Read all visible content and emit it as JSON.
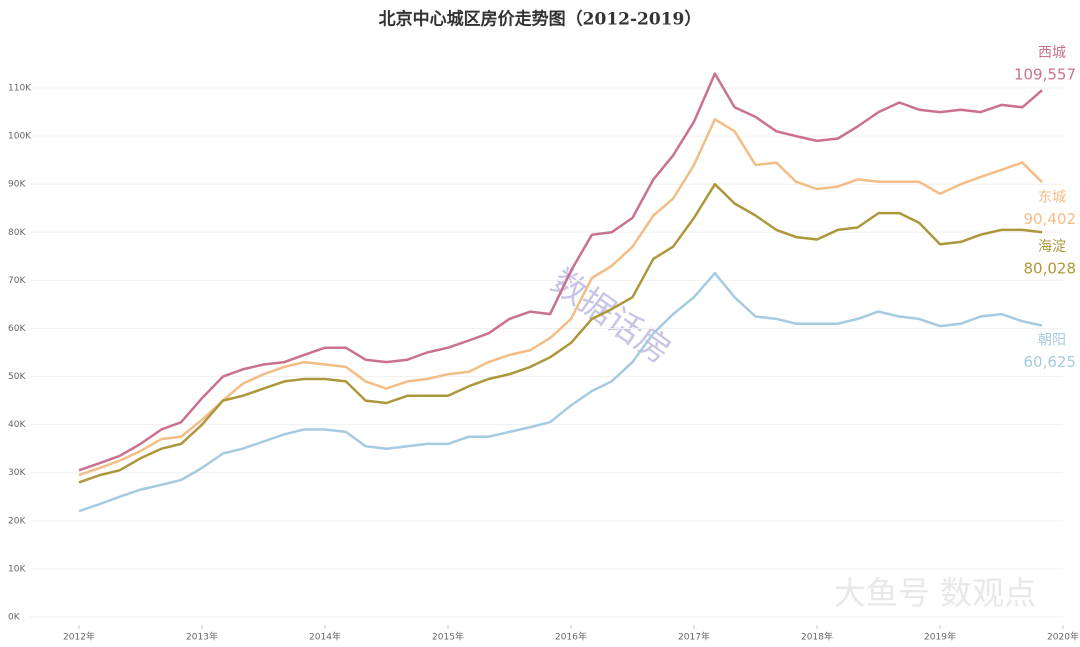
{
  "chart_data": {
    "type": "line",
    "title": "北京中心城区房价走势图（2012-2019）",
    "watermarks": [
      "数据话房",
      "大鱼号 数观点"
    ],
    "x": [
      2012,
      2012.17,
      2012.33,
      2012.5,
      2012.67,
      2012.83,
      2013,
      2013.17,
      2013.33,
      2013.5,
      2013.67,
      2013.83,
      2014,
      2014.17,
      2014.33,
      2014.5,
      2014.67,
      2014.83,
      2015,
      2015.17,
      2015.33,
      2015.5,
      2015.67,
      2015.83,
      2016,
      2016.17,
      2016.33,
      2016.5,
      2016.67,
      2016.83,
      2017,
      2017.17,
      2017.33,
      2017.5,
      2017.67,
      2017.83,
      2018,
      2018.17,
      2018.33,
      2018.5,
      2018.67,
      2018.83,
      2019,
      2019.17,
      2019.33,
      2019.5,
      2019.67,
      2019.83
    ],
    "series": [
      {
        "name": "西城",
        "color": "#c9718f",
        "values": [
          30500,
          32000,
          33500,
          36000,
          39000,
          40500,
          45500,
          50000,
          51500,
          52500,
          53000,
          54500,
          56000,
          56000,
          53500,
          53000,
          53500,
          55000,
          56000,
          57500,
          59000,
          62000,
          63500,
          63000,
          72000,
          79500,
          80000,
          83000,
          91000,
          96000,
          103000,
          113000,
          106000,
          104000,
          101000,
          100000,
          99000,
          99500,
          102000,
          105000,
          107000,
          105500,
          105000,
          105500,
          105000,
          106500,
          106000,
          109557
        ],
        "value_labels": [
          null,
          null,
          null,
          null,
          null,
          null,
          null,
          null,
          null,
          null,
          null,
          null,
          null,
          null,
          null,
          null,
          null,
          null,
          null,
          null,
          null,
          null,
          null,
          null,
          null,
          null,
          null,
          null,
          null,
          null,
          null,
          null,
          null,
          null,
          null,
          null,
          null,
          null,
          null,
          null,
          null,
          null,
          null,
          null,
          null,
          null,
          null,
          "109,557"
        ]
      },
      {
        "name": "东城",
        "color": "#f3bd85",
        "values": [
          29500,
          31000,
          32500,
          34500,
          37000,
          37500,
          41000,
          45000,
          48500,
          50500,
          52000,
          53000,
          52500,
          52000,
          49000,
          47500,
          49000,
          49500,
          50500,
          51000,
          53000,
          54500,
          55500,
          58000,
          62000,
          70500,
          73000,
          77000,
          83500,
          87000,
          94000,
          103500,
          101000,
          94000,
          94500,
          90500,
          89000,
          89500,
          91000,
          90500,
          90500,
          90500,
          88000,
          90000,
          91500,
          93000,
          94500,
          90402
        ],
        "value_labels": [
          null,
          null,
          null,
          null,
          null,
          null,
          null,
          null,
          null,
          null,
          null,
          null,
          null,
          null,
          null,
          null,
          null,
          null,
          null,
          null,
          null,
          null,
          null,
          null,
          null,
          null,
          null,
          null,
          null,
          null,
          null,
          null,
          null,
          null,
          null,
          null,
          null,
          null,
          null,
          null,
          null,
          null,
          null,
          null,
          null,
          null,
          null,
          "90,402"
        ]
      },
      {
        "name": "海淀",
        "color": "#ad973c",
        "values": [
          28000,
          29500,
          30500,
          33000,
          35000,
          36000,
          40000,
          45000,
          46000,
          47500,
          49000,
          49500,
          49500,
          49000,
          45000,
          44500,
          46000,
          46000,
          46000,
          48000,
          49500,
          50500,
          52000,
          54000,
          57000,
          62000,
          64000,
          66500,
          74500,
          77000,
          83000,
          90000,
          86000,
          83500,
          80500,
          79000,
          78500,
          80500,
          81000,
          84000,
          84000,
          82000,
          77500,
          78000,
          79500,
          80500,
          80500,
          80028
        ],
        "value_labels": [
          null,
          null,
          null,
          null,
          null,
          null,
          null,
          null,
          null,
          null,
          null,
          null,
          null,
          null,
          null,
          null,
          null,
          null,
          null,
          null,
          null,
          null,
          null,
          null,
          null,
          null,
          null,
          null,
          null,
          null,
          null,
          null,
          null,
          null,
          null,
          null,
          null,
          null,
          null,
          null,
          null,
          null,
          null,
          null,
          null,
          null,
          null,
          "80,028"
        ]
      },
      {
        "name": "朝阳",
        "color": "#a6cbe0",
        "values": [
          22000,
          23500,
          25000,
          26500,
          27500,
          28500,
          31000,
          34000,
          35000,
          36500,
          38000,
          39000,
          39000,
          38500,
          35500,
          35000,
          35500,
          36000,
          36000,
          37500,
          37500,
          38500,
          39500,
          40500,
          44000,
          47000,
          49000,
          53000,
          59000,
          63000,
          66500,
          71500,
          66500,
          62500,
          62000,
          61000,
          61000,
          61000,
          62000,
          63500,
          62500,
          62000,
          60500,
          61000,
          62500,
          63000,
          61500,
          60625
        ],
        "value_labels": [
          null,
          null,
          null,
          null,
          null,
          null,
          null,
          null,
          null,
          null,
          null,
          null,
          null,
          null,
          null,
          null,
          null,
          null,
          null,
          null,
          null,
          null,
          null,
          null,
          null,
          null,
          null,
          null,
          null,
          null,
          null,
          null,
          null,
          null,
          null,
          null,
          null,
          null,
          null,
          null,
          null,
          null,
          null,
          null,
          null,
          null,
          null,
          "60,625"
        ]
      }
    ],
    "xlim": [
      2012,
      2020
    ],
    "xticks": [
      {
        "value": 2012,
        "label": "2012年"
      },
      {
        "value": 2013,
        "label": "2013年"
      },
      {
        "value": 2014,
        "label": "2014年"
      },
      {
        "value": 2015,
        "label": "2015年"
      },
      {
        "value": 2016,
        "label": "2016年"
      },
      {
        "value": 2017,
        "label": "2017年"
      },
      {
        "value": 2018,
        "label": "2018年"
      },
      {
        "value": 2019,
        "label": "2019年"
      },
      {
        "value": 2020,
        "label": "2020年"
      }
    ],
    "ylim": [
      0,
      115000
    ],
    "yticks": [
      {
        "value": 0,
        "label": "0K"
      },
      {
        "value": 10000,
        "label": "10K"
      },
      {
        "value": 20000,
        "label": "20K"
      },
      {
        "value": 30000,
        "label": "30K"
      },
      {
        "value": 40000,
        "label": "40K"
      },
      {
        "value": 50000,
        "label": "50K"
      },
      {
        "value": 60000,
        "label": "60K"
      },
      {
        "value": 70000,
        "label": "70K"
      },
      {
        "value": 80000,
        "label": "80K"
      },
      {
        "value": 90000,
        "label": "90K"
      },
      {
        "value": 100000,
        "label": "100K"
      },
      {
        "value": 110000,
        "label": "110K"
      }
    ],
    "grid": true
  }
}
